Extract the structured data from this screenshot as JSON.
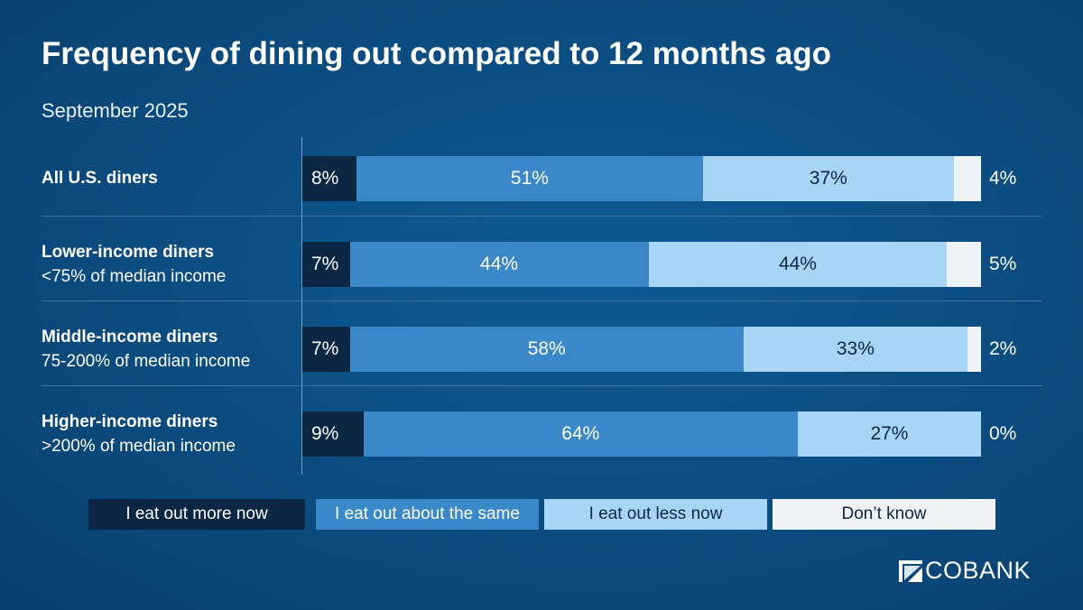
{
  "chart_data": {
    "type": "bar",
    "orientation": "horizontal-stacked-100",
    "title": "Frequency of dining out compared to 12 months ago",
    "subtitle": "September 2025",
    "categories": [
      {
        "name": "All U.S. diners",
        "sub": ""
      },
      {
        "name": "Lower-income diners",
        "sub": "<75% of median income"
      },
      {
        "name": "Middle-income diners",
        "sub": "75-200% of median income"
      },
      {
        "name": "Higher-income diners",
        "sub": ">200% of median income"
      }
    ],
    "series": [
      {
        "name": "I eat out more now",
        "color": "#0b2744",
        "text_color": "#ffffff",
        "values": [
          8,
          7,
          7,
          9
        ]
      },
      {
        "name": "I eat out about the same",
        "color": "#3a88c8",
        "text_color": "#ffffff",
        "values": [
          51,
          44,
          58,
          64
        ]
      },
      {
        "name": "I eat out less now",
        "color": "#a9d5f5",
        "text_color": "#0b2744",
        "values": [
          37,
          44,
          33,
          27
        ]
      },
      {
        "name": "Don’t know",
        "color": "#f0f3f6",
        "text_color": "#0b2744",
        "values": [
          4,
          5,
          2,
          0
        ]
      }
    ],
    "value_suffix": "%",
    "xlim": [
      0,
      100
    ],
    "legend_position": "bottom",
    "grid": false
  },
  "logo": {
    "text": "COBANK"
  },
  "colors": {
    "background": "#0b4c80"
  }
}
